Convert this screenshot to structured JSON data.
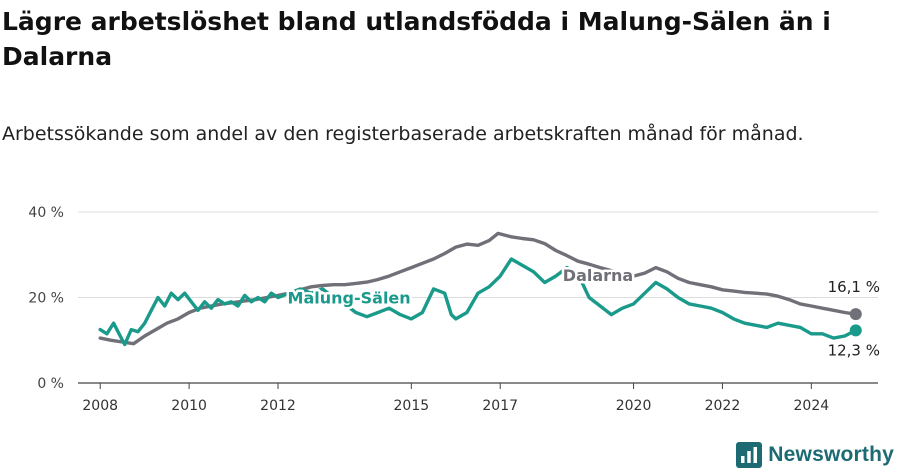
{
  "title": "Lägre arbetslöshet bland utlandsfödda i Malung-Sälen än i Dalarna",
  "subtitle": "Arbetssökande som andel av den registerbaserade arbetskraften månad för månad.",
  "brand": "Newsworthy",
  "chart_data": {
    "type": "line",
    "xlim": [
      2007.5,
      2025.5
    ],
    "ylim": [
      0,
      40
    ],
    "x_ticks": [
      2008,
      2010,
      2012,
      2015,
      2017,
      2020,
      2022,
      2024
    ],
    "y_ticks": [
      {
        "value": 0,
        "label": "0 %"
      },
      {
        "value": 20,
        "label": "20 %"
      },
      {
        "value": 40,
        "label": "40 %"
      }
    ],
    "grid": "horizontal",
    "series": [
      {
        "name": "Dalarna",
        "color": "#707078",
        "end_label": "16,1 %",
        "points": [
          [
            2008.0,
            10.5
          ],
          [
            2008.25,
            10.0
          ],
          [
            2008.5,
            9.6
          ],
          [
            2008.75,
            9.2
          ],
          [
            2009.0,
            11.0
          ],
          [
            2009.25,
            12.5
          ],
          [
            2009.5,
            14.0
          ],
          [
            2009.75,
            15.0
          ],
          [
            2010.0,
            16.5
          ],
          [
            2010.25,
            17.5
          ],
          [
            2010.5,
            18.0
          ],
          [
            2010.75,
            18.5
          ],
          [
            2011.0,
            18.8
          ],
          [
            2011.25,
            19.2
          ],
          [
            2011.5,
            19.5
          ],
          [
            2011.75,
            20.0
          ],
          [
            2012.0,
            20.5
          ],
          [
            2012.25,
            21.0
          ],
          [
            2012.5,
            21.8
          ],
          [
            2012.75,
            22.5
          ],
          [
            2013.0,
            22.8
          ],
          [
            2013.25,
            23.0
          ],
          [
            2013.5,
            23.0
          ],
          [
            2013.75,
            23.3
          ],
          [
            2014.0,
            23.6
          ],
          [
            2014.25,
            24.2
          ],
          [
            2014.5,
            25.0
          ],
          [
            2014.75,
            26.0
          ],
          [
            2015.0,
            27.0
          ],
          [
            2015.25,
            28.0
          ],
          [
            2015.5,
            29.0
          ],
          [
            2015.75,
            30.3
          ],
          [
            2016.0,
            31.8
          ],
          [
            2016.25,
            32.5
          ],
          [
            2016.5,
            32.2
          ],
          [
            2016.75,
            33.3
          ],
          [
            2016.95,
            35.0
          ],
          [
            2017.25,
            34.2
          ],
          [
            2017.5,
            33.8
          ],
          [
            2017.75,
            33.5
          ],
          [
            2018.0,
            32.6
          ],
          [
            2018.25,
            31.0
          ],
          [
            2018.5,
            29.8
          ],
          [
            2018.75,
            28.5
          ],
          [
            2019.0,
            27.8
          ],
          [
            2019.25,
            27.0
          ],
          [
            2019.5,
            26.3
          ],
          [
            2019.75,
            25.7
          ],
          [
            2020.0,
            25.0
          ],
          [
            2020.25,
            25.7
          ],
          [
            2020.5,
            27.0
          ],
          [
            2020.75,
            26.0
          ],
          [
            2021.0,
            24.5
          ],
          [
            2021.25,
            23.5
          ],
          [
            2021.5,
            23.0
          ],
          [
            2021.75,
            22.5
          ],
          [
            2022.0,
            21.8
          ],
          [
            2022.25,
            21.5
          ],
          [
            2022.5,
            21.2
          ],
          [
            2022.75,
            21.0
          ],
          [
            2023.0,
            20.8
          ],
          [
            2023.25,
            20.3
          ],
          [
            2023.5,
            19.5
          ],
          [
            2023.75,
            18.5
          ],
          [
            2024.0,
            18.0
          ],
          [
            2024.25,
            17.5
          ],
          [
            2024.5,
            17.0
          ],
          [
            2024.75,
            16.5
          ],
          [
            2025.0,
            16.1
          ]
        ]
      },
      {
        "name": "Malung-Sälen",
        "color": "#1a9a8b",
        "end_label": "12,3 %",
        "points": [
          [
            2008.0,
            12.5
          ],
          [
            2008.15,
            11.5
          ],
          [
            2008.3,
            14.0
          ],
          [
            2008.45,
            11.0
          ],
          [
            2008.55,
            9.0
          ],
          [
            2008.7,
            12.5
          ],
          [
            2008.85,
            12.0
          ],
          [
            2009.0,
            14.0
          ],
          [
            2009.15,
            17.0
          ],
          [
            2009.3,
            20.0
          ],
          [
            2009.45,
            18.0
          ],
          [
            2009.6,
            21.0
          ],
          [
            2009.75,
            19.5
          ],
          [
            2009.9,
            21.0
          ],
          [
            2010.05,
            19.0
          ],
          [
            2010.2,
            17.0
          ],
          [
            2010.35,
            19.0
          ],
          [
            2010.5,
            17.5
          ],
          [
            2010.65,
            19.5
          ],
          [
            2010.8,
            18.5
          ],
          [
            2010.95,
            19.0
          ],
          [
            2011.1,
            18.0
          ],
          [
            2011.25,
            20.5
          ],
          [
            2011.4,
            19.0
          ],
          [
            2011.55,
            20.0
          ],
          [
            2011.7,
            19.0
          ],
          [
            2011.85,
            21.0
          ],
          [
            2012.0,
            20.0
          ],
          [
            2012.5,
            22.0
          ],
          [
            2012.75,
            21.0
          ],
          [
            2013.0,
            22.0
          ],
          [
            2013.25,
            20.0
          ],
          [
            2013.5,
            18.5
          ],
          [
            2013.75,
            16.5
          ],
          [
            2014.0,
            15.5
          ],
          [
            2014.25,
            16.5
          ],
          [
            2014.5,
            17.5
          ],
          [
            2014.75,
            16.0
          ],
          [
            2015.0,
            15.0
          ],
          [
            2015.25,
            16.5
          ],
          [
            2015.5,
            22.0
          ],
          [
            2015.75,
            21.0
          ],
          [
            2015.9,
            16.0
          ],
          [
            2016.0,
            15.0
          ],
          [
            2016.25,
            16.5
          ],
          [
            2016.5,
            21.0
          ],
          [
            2016.75,
            22.5
          ],
          [
            2017.0,
            25.0
          ],
          [
            2017.25,
            29.0
          ],
          [
            2017.5,
            27.5
          ],
          [
            2017.75,
            26.0
          ],
          [
            2018.0,
            23.5
          ],
          [
            2018.25,
            25.0
          ],
          [
            2018.5,
            27.0
          ],
          [
            2018.75,
            25.5
          ],
          [
            2019.0,
            20.0
          ],
          [
            2019.25,
            18.0
          ],
          [
            2019.5,
            16.0
          ],
          [
            2019.75,
            17.5
          ],
          [
            2020.0,
            18.5
          ],
          [
            2020.25,
            21.0
          ],
          [
            2020.5,
            23.5
          ],
          [
            2020.75,
            22.0
          ],
          [
            2021.0,
            20.0
          ],
          [
            2021.25,
            18.5
          ],
          [
            2021.5,
            18.0
          ],
          [
            2021.75,
            17.5
          ],
          [
            2022.0,
            16.5
          ],
          [
            2022.25,
            15.0
          ],
          [
            2022.5,
            14.0
          ],
          [
            2022.75,
            13.5
          ],
          [
            2023.0,
            13.0
          ],
          [
            2023.25,
            14.0
          ],
          [
            2023.5,
            13.5
          ],
          [
            2023.75,
            13.0
          ],
          [
            2024.0,
            11.5
          ],
          [
            2024.25,
            11.5
          ],
          [
            2024.5,
            10.5
          ],
          [
            2024.75,
            11.0
          ],
          [
            2025.0,
            12.3
          ]
        ]
      }
    ]
  }
}
